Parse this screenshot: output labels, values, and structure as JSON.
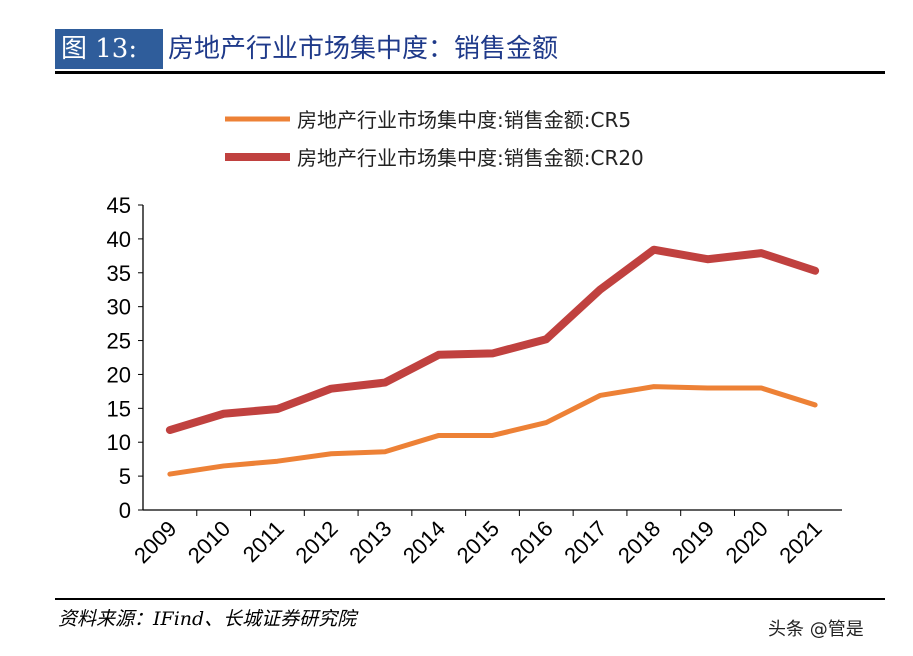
{
  "header": {
    "figure_label": "图 13:",
    "title": "房地产行业市场集中度：销售金额"
  },
  "footer": {
    "source": "资料来源：IFind、长城证券研究院",
    "watermark": "头条 @管是"
  },
  "chart_data": {
    "type": "line",
    "title": "",
    "xlabel": "",
    "ylabel": "",
    "categories": [
      "2009",
      "2010",
      "2011",
      "2012",
      "2013",
      "2014",
      "2015",
      "2016",
      "2017",
      "2018",
      "2019",
      "2020",
      "2021"
    ],
    "ylim": [
      0,
      45
    ],
    "yticks": [
      "0",
      "5",
      "10",
      "15",
      "20",
      "25",
      "30",
      "35",
      "40",
      "45"
    ],
    "grid": false,
    "legend_position": "top",
    "series": [
      {
        "name": "房地产行业市场集中度:销售金额:CR5",
        "color": "#ed8136",
        "values": [
          5.3,
          6.5,
          7.2,
          8.3,
          8.6,
          11.0,
          11.0,
          12.9,
          16.9,
          18.2,
          18.0,
          18.0,
          15.5
        ]
      },
      {
        "name": "房地产行业市场集中度:销售金额:CR20",
        "color": "#c0413f",
        "values": [
          11.8,
          14.2,
          14.9,
          17.9,
          18.8,
          22.9,
          23.1,
          25.2,
          32.5,
          38.4,
          37.0,
          37.9,
          35.3
        ]
      }
    ]
  }
}
